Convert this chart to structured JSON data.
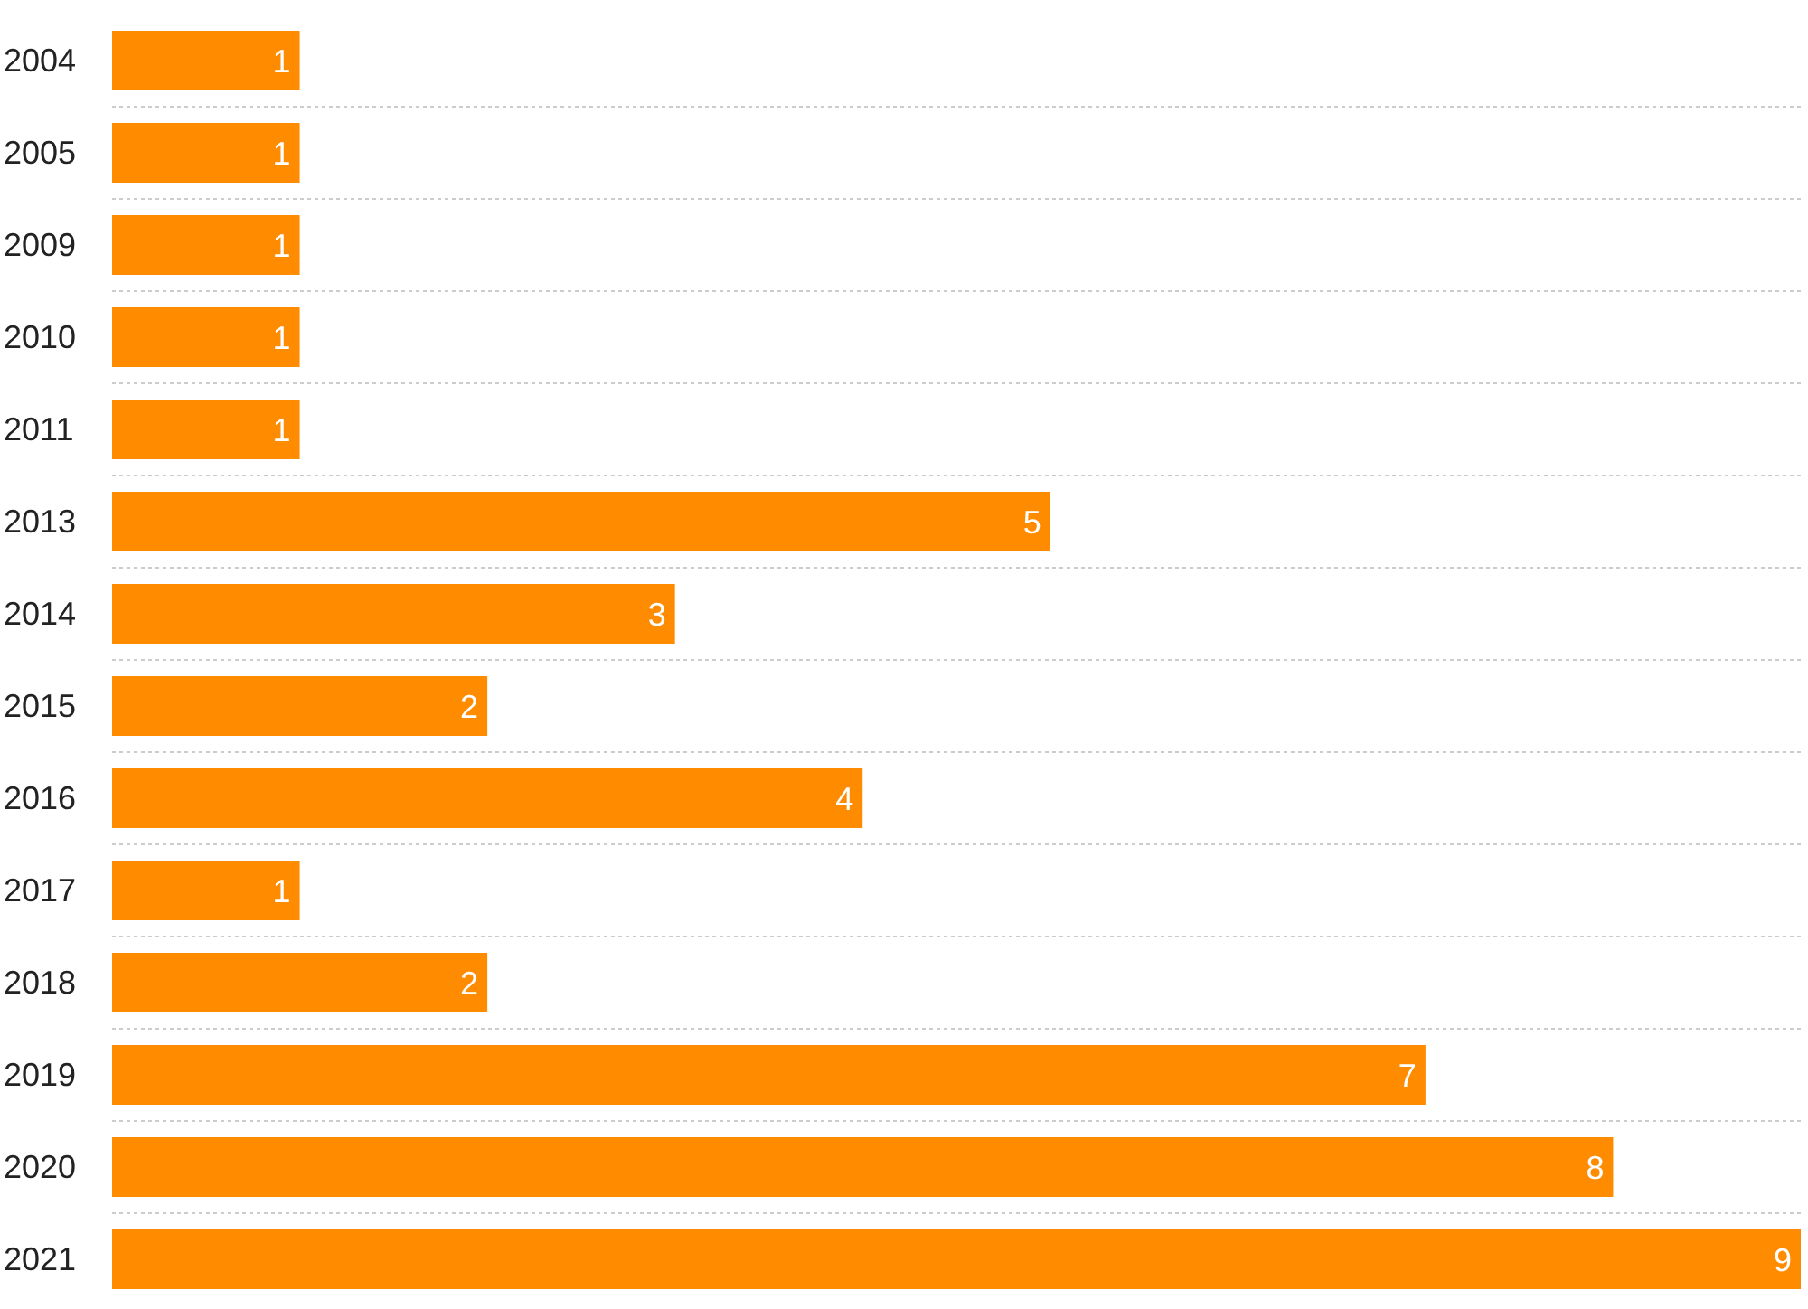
{
  "chart_data": {
    "type": "bar",
    "orientation": "horizontal",
    "categories": [
      "2004",
      "2005",
      "2009",
      "2010",
      "2011",
      "2013",
      "2014",
      "2015",
      "2016",
      "2017",
      "2018",
      "2019",
      "2020",
      "2021"
    ],
    "values": [
      1,
      1,
      1,
      1,
      1,
      5,
      3,
      2,
      4,
      1,
      2,
      7,
      8,
      9
    ],
    "color": "#ff8c00",
    "data_labels": true,
    "grid": true,
    "tick_labels": "y"
  }
}
